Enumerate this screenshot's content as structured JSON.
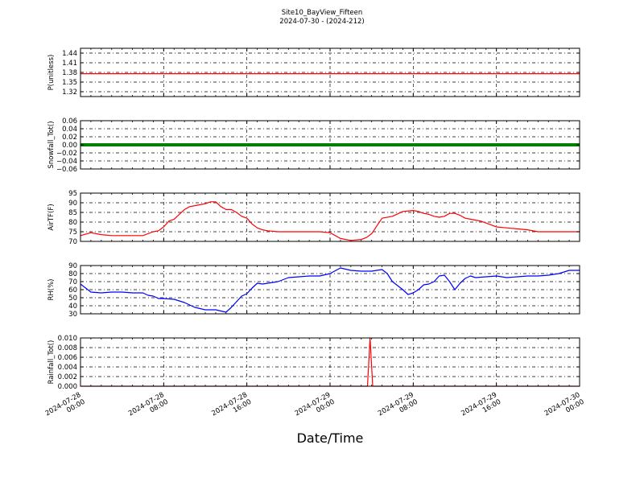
{
  "title": "Site10_BayView_Fifteen",
  "subtitle": "2024-07-30 - (2024-212)",
  "xlabel": "Date/Time",
  "x_ticks": [
    [
      "2024-07-28",
      "00:00"
    ],
    [
      "2024-07-28",
      "08:00"
    ],
    [
      "2024-07-28",
      "16:00"
    ],
    [
      "2024-07-29",
      "00:00"
    ],
    [
      "2024-07-29",
      "08:00"
    ],
    [
      "2024-07-29",
      "16:00"
    ],
    [
      "2024-07-30",
      "00:00"
    ]
  ],
  "chart_data": [
    {
      "type": "line",
      "ylabel": "P(unitless)",
      "ylim": [
        1.305,
        1.455
      ],
      "yticks": [
        "1.44",
        "1.41",
        "1.38",
        "1.35",
        "1.32"
      ],
      "ytick_values": [
        1.44,
        1.41,
        1.38,
        1.35,
        1.32
      ],
      "color": "#ff0000",
      "x_range_hours": [
        0,
        48
      ],
      "x_hours": [
        0,
        48
      ],
      "values": [
        1.376,
        1.376
      ],
      "grid": true
    },
    {
      "type": "line",
      "ylabel": "Snowfall_Tot()",
      "ylim": [
        -0.06,
        0.06
      ],
      "yticks": [
        "0.06",
        "0.04",
        "0.02",
        "0.00",
        "−0.02",
        "−0.04",
        "−0.06"
      ],
      "ytick_values": [
        0.06,
        0.04,
        0.02,
        0,
        -0.02,
        -0.04,
        -0.06
      ],
      "color": "#008000",
      "x_range_hours": [
        0,
        48
      ],
      "x_hours": [
        0,
        48
      ],
      "values": [
        0,
        0
      ],
      "grid": true
    },
    {
      "type": "line",
      "ylabel": "AirTF(F)",
      "ylim": [
        70,
        95
      ],
      "yticks": [
        "95",
        "90",
        "85",
        "80",
        "75",
        "70"
      ],
      "ytick_values": [
        95,
        90,
        85,
        80,
        75,
        70
      ],
      "color": "#ff0000",
      "x_range_hours": [
        0,
        48
      ],
      "x_hours": [
        0,
        1,
        2,
        3,
        4,
        5,
        6,
        7,
        7.5,
        8,
        8.5,
        9,
        9.5,
        10,
        10.5,
        11,
        11.5,
        12,
        12.5,
        13,
        13.5,
        14,
        14.5,
        15,
        15.5,
        16,
        16.5,
        17,
        17.5,
        18,
        19,
        20,
        21,
        22,
        23,
        24,
        25,
        26,
        27,
        27.5,
        28,
        28.5,
        29,
        30,
        31,
        32,
        32.5,
        33,
        33.5,
        34,
        34.5,
        35,
        35.5,
        36,
        36.5,
        37,
        37.5,
        38,
        38.5,
        39,
        39.5,
        40,
        41,
        42,
        43,
        44,
        45,
        46,
        47,
        48
      ],
      "values": [
        73,
        74.5,
        73.5,
        73,
        73,
        73,
        73,
        75,
        75.5,
        77.5,
        80.5,
        81.5,
        84,
        86.5,
        88,
        88.5,
        89,
        89.5,
        90.5,
        90.5,
        88,
        86.5,
        86.5,
        85,
        83,
        82,
        79,
        77,
        76,
        75.5,
        75,
        75,
        75,
        75,
        75,
        74.5,
        71.5,
        70.5,
        71,
        72,
        74,
        78,
        82,
        83,
        85.5,
        86,
        85.5,
        84.5,
        84,
        83,
        82.5,
        83,
        84.5,
        84.5,
        83.5,
        82,
        81.5,
        81,
        80.5,
        79.5,
        78.5,
        77.5,
        77,
        76.5,
        76,
        75,
        75,
        75,
        75,
        75
      ],
      "grid": true
    },
    {
      "type": "line",
      "ylabel": "RH(%)",
      "ylim": [
        30,
        90
      ],
      "yticks": [
        "90",
        "80",
        "70",
        "60",
        "50",
        "40",
        "30"
      ],
      "ytick_values": [
        90,
        80,
        70,
        60,
        50,
        40,
        30
      ],
      "color": "#0000ff",
      "x_range_hours": [
        0,
        48
      ],
      "x_hours": [
        0,
        1,
        2,
        3,
        4,
        5,
        6,
        6.5,
        7,
        7.5,
        8,
        9,
        10,
        11,
        12,
        13,
        14,
        14.5,
        15,
        15.5,
        16,
        16.5,
        17,
        17.5,
        18,
        19,
        20,
        21,
        22,
        23,
        24,
        25,
        26,
        27,
        28,
        28.5,
        29,
        29.5,
        30,
        31,
        31.5,
        32,
        32.5,
        33,
        33.5,
        34,
        34.5,
        35,
        35.5,
        36,
        36.5,
        37,
        37.5,
        38,
        39,
        40,
        41,
        42,
        43,
        44,
        45,
        46,
        47,
        48
      ],
      "values": [
        67,
        57,
        56,
        57,
        57,
        56,
        56,
        53,
        52,
        49,
        49,
        48,
        44,
        38,
        35,
        35,
        32,
        38,
        45,
        52,
        55,
        62,
        68,
        67,
        68,
        70,
        75,
        76,
        77,
        77,
        80,
        87,
        84,
        83,
        83,
        84,
        85,
        80,
        70,
        60,
        54,
        56,
        60,
        66,
        67,
        70,
        77,
        78,
        70,
        60,
        68,
        74,
        77,
        75,
        76,
        77,
        75,
        76,
        77,
        77,
        78,
        80,
        84,
        84
      ],
      "grid": true
    },
    {
      "type": "line",
      "ylabel": "Rainfall_Tot()",
      "ylim": [
        0,
        0.01
      ],
      "yticks": [
        "0.010",
        "0.008",
        "0.006",
        "0.004",
        "0.002",
        "0.000"
      ],
      "ytick_values": [
        0.01,
        0.008,
        0.006,
        0.004,
        0.002,
        0
      ],
      "color": "#ff0000",
      "x_range_hours": [
        0,
        48
      ],
      "x_hours": [
        0,
        27.6,
        27.85,
        28.1,
        48
      ],
      "values": [
        0,
        0,
        0.01,
        0,
        0
      ],
      "grid": true
    }
  ]
}
